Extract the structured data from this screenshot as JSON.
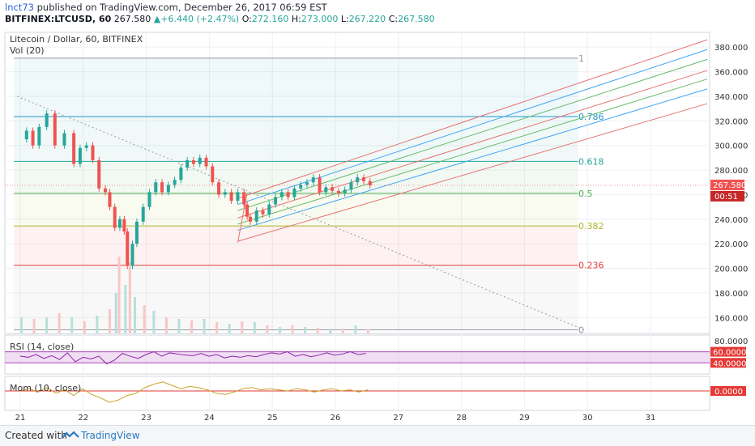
{
  "header": {
    "author": "lnct73",
    "published": "published on TradingView.com, December 26, 2017 06:59 EST",
    "symbol": "BITFINEX:LTCUSD, 60",
    "price": "267.580",
    "change": "+6.440 (+2.47%)",
    "open_label": "O:",
    "open": "272.160",
    "high_label": "H:",
    "high": "273.000",
    "low_label": "L:",
    "low": "267.220",
    "close_label": "C:",
    "close": "267.580"
  },
  "chart_data": {
    "type": "line",
    "title": "Litecoin / Dollar, 60, BITFINEX",
    "volume_label": "Vol (20)",
    "x_ticks": [
      "21",
      "22",
      "23",
      "24",
      "25",
      "26",
      "27",
      "28",
      "29",
      "30",
      "31"
    ],
    "y_ticks": [
      "160.000",
      "180.000",
      "200.000",
      "220.000",
      "240.000",
      "260.000",
      "280.000",
      "300.000",
      "320.000",
      "340.000",
      "360.000",
      "380.000"
    ],
    "ylim": [
      147,
      392
    ],
    "last_price_label": "267.580",
    "countdown": "00:51",
    "fib_levels": [
      {
        "label": "1",
        "value": 371,
        "color": "#9598a1"
      },
      {
        "label": "0.786",
        "value": 323.5,
        "color": "#2196c8"
      },
      {
        "label": "0.618",
        "value": 287,
        "color": "#26a69a"
      },
      {
        "label": "0.5",
        "value": 261,
        "color": "#4caf50"
      },
      {
        "label": "0.382",
        "value": 234.5,
        "color": "#afb42b"
      },
      {
        "label": "0.236",
        "value": 202.5,
        "color": "#e53935"
      },
      {
        "label": "0",
        "value": 150,
        "color": "#9598a1"
      }
    ],
    "price_series": [
      {
        "d": 21.0,
        "p": 305
      },
      {
        "d": 21.1,
        "p": 312
      },
      {
        "d": 21.2,
        "p": 300
      },
      {
        "d": 21.3,
        "p": 315
      },
      {
        "d": 21.42,
        "p": 326
      },
      {
        "d": 21.55,
        "p": 300
      },
      {
        "d": 21.7,
        "p": 310
      },
      {
        "d": 21.85,
        "p": 285
      },
      {
        "d": 21.95,
        "p": 298
      },
      {
        "d": 22.05,
        "p": 300
      },
      {
        "d": 22.15,
        "p": 288
      },
      {
        "d": 22.25,
        "p": 265
      },
      {
        "d": 22.35,
        "p": 262
      },
      {
        "d": 22.42,
        "p": 250
      },
      {
        "d": 22.5,
        "p": 233
      },
      {
        "d": 22.58,
        "p": 240
      },
      {
        "d": 22.65,
        "p": 230
      },
      {
        "d": 22.7,
        "p": 202
      },
      {
        "d": 22.78,
        "p": 220
      },
      {
        "d": 22.85,
        "p": 238
      },
      {
        "d": 22.95,
        "p": 250
      },
      {
        "d": 23.05,
        "p": 262
      },
      {
        "d": 23.15,
        "p": 270
      },
      {
        "d": 23.25,
        "p": 262
      },
      {
        "d": 23.35,
        "p": 268
      },
      {
        "d": 23.45,
        "p": 272
      },
      {
        "d": 23.55,
        "p": 282
      },
      {
        "d": 23.65,
        "p": 288
      },
      {
        "d": 23.75,
        "p": 285
      },
      {
        "d": 23.85,
        "p": 290
      },
      {
        "d": 23.95,
        "p": 283
      },
      {
        "d": 24.05,
        "p": 270
      },
      {
        "d": 24.15,
        "p": 260
      },
      {
        "d": 24.25,
        "p": 262
      },
      {
        "d": 24.35,
        "p": 255
      },
      {
        "d": 24.45,
        "p": 262
      },
      {
        "d": 24.55,
        "p": 252
      },
      {
        "d": 24.6,
        "p": 242
      },
      {
        "d": 24.65,
        "p": 238
      },
      {
        "d": 24.75,
        "p": 247
      },
      {
        "d": 24.85,
        "p": 244
      },
      {
        "d": 24.95,
        "p": 252
      },
      {
        "d": 25.05,
        "p": 258
      },
      {
        "d": 25.15,
        "p": 262
      },
      {
        "d": 25.25,
        "p": 258
      },
      {
        "d": 25.35,
        "p": 265
      },
      {
        "d": 25.45,
        "p": 268
      },
      {
        "d": 25.55,
        "p": 270
      },
      {
        "d": 25.65,
        "p": 274
      },
      {
        "d": 25.75,
        "p": 262
      },
      {
        "d": 25.85,
        "p": 266
      },
      {
        "d": 25.95,
        "p": 263
      },
      {
        "d": 26.05,
        "p": 261
      },
      {
        "d": 26.15,
        "p": 264
      },
      {
        "d": 26.25,
        "p": 270
      },
      {
        "d": 26.35,
        "p": 274
      },
      {
        "d": 26.45,
        "p": 271
      },
      {
        "d": 26.55,
        "p": 267.58
      }
    ],
    "volume_bars": [
      {
        "d": 21.0,
        "v": 0.2
      },
      {
        "d": 21.2,
        "v": 0.18
      },
      {
        "d": 21.4,
        "v": 0.2
      },
      {
        "d": 21.6,
        "v": 0.25
      },
      {
        "d": 21.8,
        "v": 0.2
      },
      {
        "d": 22.0,
        "v": 0.15
      },
      {
        "d": 22.2,
        "v": 0.22
      },
      {
        "d": 22.4,
        "v": 0.3
      },
      {
        "d": 22.5,
        "v": 0.5
      },
      {
        "d": 22.55,
        "v": 0.95
      },
      {
        "d": 22.65,
        "v": 0.6
      },
      {
        "d": 22.72,
        "v": 0.88
      },
      {
        "d": 22.8,
        "v": 0.45
      },
      {
        "d": 22.95,
        "v": 0.35
      },
      {
        "d": 23.1,
        "v": 0.28
      },
      {
        "d": 23.3,
        "v": 0.2
      },
      {
        "d": 23.5,
        "v": 0.18
      },
      {
        "d": 23.7,
        "v": 0.16
      },
      {
        "d": 23.9,
        "v": 0.18
      },
      {
        "d": 24.1,
        "v": 0.14
      },
      {
        "d": 24.3,
        "v": 0.12
      },
      {
        "d": 24.5,
        "v": 0.15
      },
      {
        "d": 24.7,
        "v": 0.14
      },
      {
        "d": 24.9,
        "v": 0.1
      },
      {
        "d": 25.1,
        "v": 0.08
      },
      {
        "d": 25.3,
        "v": 0.1
      },
      {
        "d": 25.5,
        "v": 0.08
      },
      {
        "d": 25.7,
        "v": 0.07
      },
      {
        "d": 25.9,
        "v": 0.06
      },
      {
        "d": 26.1,
        "v": 0.06
      },
      {
        "d": 26.3,
        "v": 0.1
      },
      {
        "d": 26.5,
        "v": 0.05
      }
    ],
    "trend_line": {
      "from": {
        "d": 20.95,
        "p": 340
      },
      "to": {
        "d": 29.95,
        "p": 150
      }
    },
    "channel": {
      "start_d": 24.45,
      "end_d": 31.9,
      "lines": [
        {
          "p0": 257,
          "p1": 386,
          "color": "#e57373"
        },
        {
          "p0": 252,
          "p1": 378,
          "color": "#42a5f5"
        },
        {
          "p0": 247,
          "p1": 370,
          "color": "#66bb6a"
        },
        {
          "p0": 241,
          "p1": 361,
          "color": "#e57373"
        },
        {
          "p0": 236,
          "p1": 354,
          "color": "#66bb6a"
        },
        {
          "p0": 231,
          "p1": 346,
          "color": "#42a5f5"
        },
        {
          "p0": 222,
          "p1": 334,
          "color": "#e57373"
        }
      ],
      "pivot": {
        "d": 24.45,
        "p": 221
      },
      "pivot_top": {
        "d": 24.6,
        "p": 261
      }
    },
    "rsi": {
      "label": "RSI (14, close)",
      "ticks": [
        "80.0000"
      ],
      "upper": "60.0000",
      "lower": "40.0000",
      "values": [
        52,
        50,
        55,
        48,
        53,
        46,
        58,
        42,
        50,
        47,
        52,
        38,
        45,
        57,
        52,
        48,
        55,
        60,
        52,
        58,
        56,
        54,
        53,
        57,
        52,
        55,
        49,
        52,
        50,
        53,
        51,
        55,
        58,
        56,
        60,
        52,
        55,
        51,
        54,
        58,
        54,
        56,
        60,
        55,
        57
      ]
    },
    "momentum": {
      "label": "Mom (10, close)",
      "zero": "0.0000",
      "values": [
        0,
        2,
        -1,
        3,
        -2,
        1,
        -4,
        2,
        -3,
        -6,
        -10,
        -8,
        -4,
        -2,
        3,
        6,
        8,
        5,
        2,
        4,
        3,
        1,
        -2,
        -3,
        -1,
        2,
        3,
        1,
        2,
        1,
        0,
        2,
        1,
        -1,
        1,
        2,
        0,
        1,
        -1,
        1
      ]
    }
  },
  "footer": {
    "created_with": "Created with",
    "brand": "TradingView"
  },
  "colors": {
    "up": "#26a69a",
    "down": "#ef5350",
    "grid": "#eef0f3"
  }
}
